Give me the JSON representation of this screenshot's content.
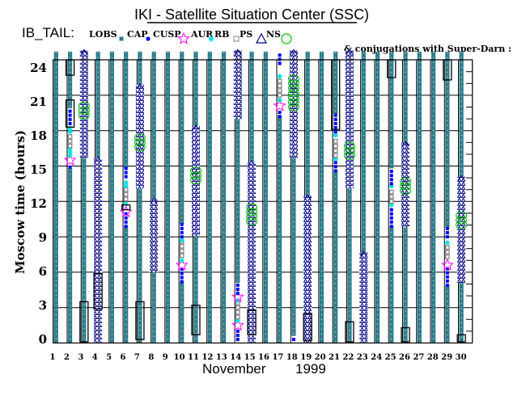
{
  "chart_data": {
    "type": "timeline",
    "title": "IKI - Satellite Situation Center (SSC)",
    "satellite_label": "IB_TAIL:",
    "conjugation_note": "& conjugations with Super-Darn :",
    "xlabel_month": "November",
    "xlabel_year": "1999",
    "ylabel": "Moscow time (hours)",
    "xlim": [
      1,
      31
    ],
    "ylim": [
      0,
      24
    ],
    "grid": true,
    "yticks": [
      "0",
      "3",
      "6",
      "9",
      "12",
      "15",
      "18",
      "21",
      "24"
    ],
    "xticks": [
      "1",
      "2",
      "3",
      "4",
      "5",
      "6",
      "7",
      "8",
      "9",
      "10",
      "11",
      "12",
      "13",
      "14",
      "15",
      "16",
      "17",
      "18",
      "19",
      "20",
      "21",
      "22",
      "23",
      "24",
      "25",
      "26",
      "27",
      "28",
      "29",
      "30"
    ],
    "legend": [
      {
        "label": "LOBS",
        "symbol": "square-filled",
        "color": "#2e7d8a"
      },
      {
        "label": "CAP",
        "symbol": "dot",
        "color": "#0000ff"
      },
      {
        "label": "CUSP",
        "symbol": "star",
        "color": "#ff00ff"
      },
      {
        "label": "AUR",
        "symbol": "asterisk",
        "color": "#00dede"
      },
      {
        "label": "RB",
        "symbol": "square-open",
        "color": "#808080"
      },
      {
        "label": "PS",
        "symbol": "triangle",
        "color": "#000080"
      },
      {
        "label": "NS",
        "symbol": "circle",
        "color": "#00c000"
      }
    ],
    "days": [
      {
        "day": 1,
        "segments": [
          {
            "type": "LOBS",
            "from": 0,
            "to": 24.7
          }
        ],
        "conjugations": []
      },
      {
        "day": 2,
        "segments": [
          {
            "type": "LOBS",
            "from": 0,
            "to": 14.8
          },
          {
            "type": "LOBS",
            "from": 19.9,
            "to": 24.7
          },
          {
            "type": "CAP",
            "from": 14.9,
            "to": 15.2
          },
          {
            "type": "CUSP",
            "at": 15.5
          },
          {
            "type": "AUR",
            "from": 15.9,
            "to": 16.5
          },
          {
            "type": "RB",
            "from": 16.7,
            "to": 17.8
          },
          {
            "type": "AUR",
            "from": 17.9,
            "to": 18.2
          },
          {
            "type": "CAP",
            "from": 18.6,
            "to": 19.8
          }
        ],
        "conjugations": [
          [
            18.3,
            20.6
          ],
          [
            22.7,
            24
          ]
        ]
      },
      {
        "day": 3,
        "segments": [
          {
            "type": "LOBS",
            "from": 0,
            "to": 15.7
          },
          {
            "type": "PS",
            "from": 15.7,
            "to": 24.8
          },
          {
            "type": "NS",
            "from": 19.0,
            "to": 20.6
          }
        ],
        "conjugations": [
          [
            0.1,
            3.5
          ]
        ]
      },
      {
        "day": 4,
        "segments": [
          {
            "type": "LOBS",
            "from": 15.7,
            "to": 24.7
          },
          {
            "type": "PS",
            "from": 0,
            "to": 15.7
          }
        ],
        "conjugations": [
          [
            2.9,
            5.9
          ]
        ]
      },
      {
        "day": 5,
        "segments": [
          {
            "type": "LOBS",
            "from": 0,
            "to": 24.7
          }
        ],
        "conjugations": []
      },
      {
        "day": 6,
        "segments": [
          {
            "type": "LOBS",
            "from": 0,
            "to": 9.9
          },
          {
            "type": "LOBS",
            "from": 14.8,
            "to": 24.7
          },
          {
            "type": "CAP",
            "from": 9.9,
            "to": 11.0
          },
          {
            "type": "CUSP",
            "at": 11.1
          },
          {
            "type": "AUR",
            "from": 11.8,
            "to": 11.9
          },
          {
            "type": "RB",
            "from": 12.2,
            "to": 13.1
          },
          {
            "type": "AUR",
            "from": 13.3,
            "to": 13.8
          },
          {
            "type": "CAP",
            "from": 14.1,
            "to": 14.8
          }
        ],
        "conjugations": [
          [
            11.3,
            11.7
          ]
        ]
      },
      {
        "day": 7,
        "segments": [
          {
            "type": "LOBS",
            "from": 0,
            "to": 13.1
          },
          {
            "type": "LOBS",
            "from": 21.9,
            "to": 24.7
          },
          {
            "type": "PS",
            "from": 13.1,
            "to": 21.9
          },
          {
            "type": "NS",
            "from": 16.3,
            "to": 17.9
          }
        ],
        "conjugations": [
          [
            0.3,
            3.5
          ]
        ]
      },
      {
        "day": 8,
        "segments": [
          {
            "type": "LOBS",
            "from": 0,
            "to": 6.0
          },
          {
            "type": "LOBS",
            "from": 12.2,
            "to": 24.7
          },
          {
            "type": "PS",
            "from": 6.0,
            "to": 12.2
          }
        ],
        "conjugations": []
      },
      {
        "day": 9,
        "segments": [
          {
            "type": "LOBS",
            "from": 0,
            "to": 24.7
          }
        ],
        "conjugations": []
      },
      {
        "day": 10,
        "segments": [
          {
            "type": "LOBS",
            "from": 0,
            "to": 5.2
          },
          {
            "type": "LOBS",
            "from": 10.1,
            "to": 24.7
          },
          {
            "type": "CAP",
            "from": 5.2,
            "to": 6.3
          },
          {
            "type": "CUSP",
            "at": 6.6
          },
          {
            "type": "AUR",
            "from": 7.0,
            "to": 7.1
          },
          {
            "type": "RB",
            "from": 7.4,
            "to": 8.6
          },
          {
            "type": "AUR",
            "from": 8.7,
            "to": 8.8
          },
          {
            "type": "CAP",
            "from": 9.0,
            "to": 10.1
          }
        ],
        "conjugations": []
      },
      {
        "day": 11,
        "segments": [
          {
            "type": "LOBS",
            "from": 0,
            "to": 9.1
          },
          {
            "type": "LOBS",
            "from": 18.4,
            "to": 24.7
          },
          {
            "type": "PS",
            "from": 9.1,
            "to": 18.4
          },
          {
            "type": "NS",
            "from": 13.5,
            "to": 15.2
          }
        ],
        "conjugations": [
          [
            0.7,
            3.2
          ]
        ]
      },
      {
        "day": 12,
        "segments": [
          {
            "type": "LOBS",
            "from": 0,
            "to": 24.7
          }
        ],
        "conjugations": []
      },
      {
        "day": 13,
        "segments": [
          {
            "type": "LOBS",
            "from": 0,
            "to": 24.7
          }
        ],
        "conjugations": []
      },
      {
        "day": 14,
        "segments": [
          {
            "type": "LOBS",
            "from": 5.1,
            "to": 19.0
          },
          {
            "type": "PS",
            "from": 19.0,
            "to": 24.8
          },
          {
            "type": "CAP",
            "from": 0.3,
            "to": 1.3
          },
          {
            "type": "CUSP",
            "at": 1.5
          },
          {
            "type": "AUR",
            "from": 1.9,
            "to": 2.0
          },
          {
            "type": "RB",
            "from": 2.2,
            "to": 3.5
          },
          {
            "type": "AUR",
            "from": 3.6,
            "to": 3.7
          },
          {
            "type": "CUSP",
            "at": 3.9
          },
          {
            "type": "CAP",
            "from": 4.2,
            "to": 5.1
          }
        ],
        "conjugations": []
      },
      {
        "day": 15,
        "segments": [
          {
            "type": "LOBS",
            "from": 15.4,
            "to": 24.7
          },
          {
            "type": "PS",
            "from": 0,
            "to": 15.4
          },
          {
            "type": "NS",
            "from": 10.0,
            "to": 12.0
          }
        ],
        "conjugations": [
          [
            0.7,
            2.8
          ]
        ]
      },
      {
        "day": 16,
        "segments": [
          {
            "type": "LOBS",
            "from": 0,
            "to": 24.7
          }
        ],
        "conjugations": []
      },
      {
        "day": 17,
        "segments": [
          {
            "type": "LOBS",
            "from": 0,
            "to": 19.2
          },
          {
            "type": "CAP",
            "from": 19.2,
            "to": 19.8
          },
          {
            "type": "CUSP",
            "at": 20.1
          },
          {
            "type": "AUR",
            "from": 20.6,
            "to": 20.7
          },
          {
            "type": "RB",
            "from": 21.0,
            "to": 22.4
          },
          {
            "type": "AUR",
            "from": 22.6,
            "to": 22.7
          },
          {
            "type": "CAP",
            "from": 23.7,
            "to": 24.7
          }
        ],
        "conjugations": []
      },
      {
        "day": 18,
        "segments": [
          {
            "type": "LOBS",
            "from": 0.6,
            "to": 15.7
          },
          {
            "type": "CAP",
            "from": 0.3,
            "to": 0.5
          },
          {
            "type": "PS",
            "from": 15.7,
            "to": 24.8
          },
          {
            "type": "NS",
            "from": 19.7,
            "to": 22.9
          }
        ],
        "conjugations": []
      },
      {
        "day": 19,
        "segments": [
          {
            "type": "LOBS",
            "from": 12.5,
            "to": 24.7
          },
          {
            "type": "PS",
            "from": 0,
            "to": 12.5
          }
        ],
        "conjugations": [
          [
            0.2,
            2.5
          ]
        ]
      },
      {
        "day": 20,
        "segments": [
          {
            "type": "LOBS",
            "from": 0,
            "to": 24.7
          }
        ],
        "conjugations": []
      },
      {
        "day": 21,
        "segments": [
          {
            "type": "LOBS",
            "from": 0,
            "to": 14.6
          },
          {
            "type": "LOBS",
            "from": 19.4,
            "to": 24.7
          },
          {
            "type": "CAP",
            "from": 14.6,
            "to": 15.4
          },
          {
            "type": "AUR",
            "from": 15.6,
            "to": 15.7
          },
          {
            "type": "RB",
            "from": 15.9,
            "to": 17.4
          },
          {
            "type": "AUR",
            "from": 17.6,
            "to": 17.7
          },
          {
            "type": "CAP",
            "from": 17.9,
            "to": 19.4
          }
        ],
        "conjugations": [
          [
            18.1,
            24
          ]
        ]
      },
      {
        "day": 22,
        "segments": [
          {
            "type": "LOBS",
            "from": 0,
            "to": 13.1
          },
          {
            "type": "PS",
            "from": 13.1,
            "to": 24.8
          },
          {
            "type": "NS",
            "from": 15.6,
            "to": 17.2
          }
        ],
        "conjugations": [
          [
            0.1,
            1.8
          ]
        ]
      },
      {
        "day": 23,
        "segments": [
          {
            "type": "LOBS",
            "from": 7.7,
            "to": 24.7
          },
          {
            "type": "PS",
            "from": 0,
            "to": 7.7
          }
        ],
        "conjugations": []
      },
      {
        "day": 24,
        "segments": [
          {
            "type": "LOBS",
            "from": 0,
            "to": 24.7
          }
        ],
        "conjugations": []
      },
      {
        "day": 25,
        "segments": [
          {
            "type": "LOBS",
            "from": 0,
            "to": 9.9
          },
          {
            "type": "LOBS",
            "from": 14.8,
            "to": 24.7
          },
          {
            "type": "CAP",
            "from": 9.9,
            "to": 11.4
          },
          {
            "type": "AUR",
            "from": 11.7,
            "to": 11.8
          },
          {
            "type": "RB",
            "from": 12.0,
            "to": 13.1
          },
          {
            "type": "AUR",
            "from": 13.3,
            "to": 13.4
          },
          {
            "type": "CAP",
            "from": 13.5,
            "to": 14.8
          }
        ],
        "conjugations": [
          [
            22.5,
            24
          ]
        ]
      },
      {
        "day": 26,
        "segments": [
          {
            "type": "LOBS",
            "from": 0,
            "to": 9.8
          },
          {
            "type": "LOBS",
            "from": 17.0,
            "to": 24.7
          },
          {
            "type": "PS",
            "from": 9.8,
            "to": 17.0
          },
          {
            "type": "NS",
            "from": 12.6,
            "to": 14.2
          }
        ],
        "conjugations": [
          [
            0.1,
            1.3
          ]
        ]
      },
      {
        "day": 27,
        "segments": [
          {
            "type": "LOBS",
            "from": 0,
            "to": 24.7
          }
        ],
        "conjugations": []
      },
      {
        "day": 28,
        "segments": [
          {
            "type": "LOBS",
            "from": 0,
            "to": 24.7
          }
        ],
        "conjugations": []
      },
      {
        "day": 29,
        "segments": [
          {
            "type": "LOBS",
            "from": 0,
            "to": 4.9
          },
          {
            "type": "LOBS",
            "from": 9.8,
            "to": 24.7
          },
          {
            "type": "CAP",
            "from": 4.9,
            "to": 6.3
          },
          {
            "type": "CUSP",
            "at": 6.6
          },
          {
            "type": "RB",
            "from": 7.3,
            "to": 8.2
          },
          {
            "type": "AUR",
            "from": 8.5,
            "to": 8.7
          },
          {
            "type": "CAP",
            "from": 9.0,
            "to": 9.8
          }
        ],
        "conjugations": [
          [
            22.3,
            24
          ]
        ]
      },
      {
        "day": 30,
        "segments": [
          {
            "type": "LOBS",
            "from": 0,
            "to": 5.1
          },
          {
            "type": "LOBS",
            "from": 14.1,
            "to": 24.7
          },
          {
            "type": "PS",
            "from": 5.1,
            "to": 14.1
          },
          {
            "type": "NS",
            "from": 9.7,
            "to": 11.1
          }
        ],
        "conjugations": [
          [
            0.1,
            0.7
          ]
        ]
      }
    ]
  }
}
